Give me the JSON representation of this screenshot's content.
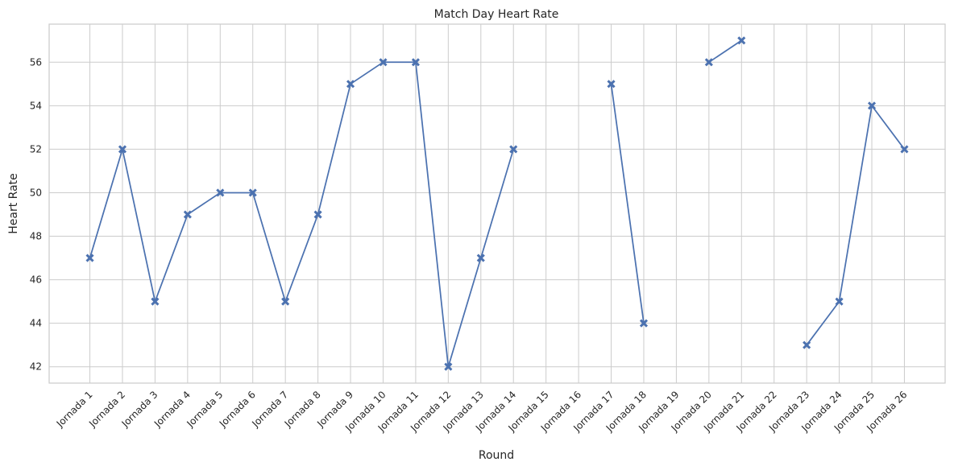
{
  "chart_data": {
    "type": "line",
    "title": "Match Day Heart Rate",
    "xlabel": "Round",
    "ylabel": "Heart Rate",
    "categories": [
      "Jornada 1",
      "Jornada 2",
      "Jornada 3",
      "Jornada 4",
      "Jornada 5",
      "Jornada 6",
      "Jornada 7",
      "Jornada 8",
      "Jornada 9",
      "Jornada 10",
      "Jornada 11",
      "Jornada 12",
      "Jornada 13",
      "Jornada 14",
      "Jornada 15",
      "Jornada 16",
      "Jornada 17",
      "Jornada 18",
      "Jornada 19",
      "Jornada 20",
      "Jornada 21",
      "Jornada 22",
      "Jornada 23",
      "Jornada 24",
      "Jornada 25",
      "Jornada 26"
    ],
    "values": [
      47,
      52,
      45,
      49,
      50,
      50,
      45,
      49,
      55,
      56,
      56,
      42,
      47,
      52,
      null,
      null,
      55,
      44,
      null,
      56,
      57,
      null,
      43,
      45,
      54,
      52
    ],
    "ylim": [
      41.25,
      57.75
    ],
    "yticks": [
      42,
      44,
      46,
      48,
      50,
      52,
      54,
      56
    ],
    "grid": true,
    "marker": "X",
    "line_color": "#4c72b0"
  }
}
